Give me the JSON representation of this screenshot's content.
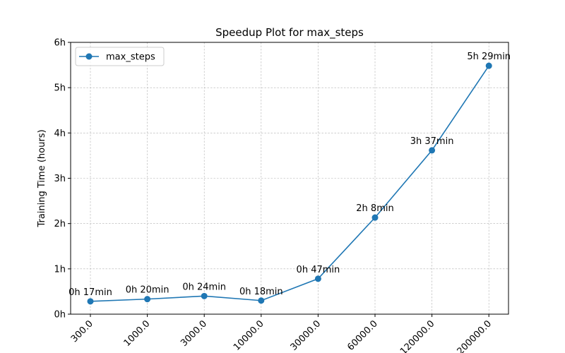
{
  "chart_data": {
    "type": "line",
    "title": "Speedup Plot for max_steps",
    "xlabel": "",
    "ylabel": "Training Time (hours)",
    "categories": [
      "300.0",
      "1000.0",
      "3000.0",
      "10000.0",
      "30000.0",
      "60000.0",
      "120000.0",
      "200000.0"
    ],
    "series": [
      {
        "name": "max_steps",
        "values": [
          0.283,
          0.333,
          0.4,
          0.3,
          0.783,
          2.133,
          3.617,
          5.483
        ],
        "labels": [
          "0h 17min",
          "0h 20min",
          "0h 24min",
          "0h 18min",
          "0h 47min",
          "2h 8min",
          "3h 37min",
          "5h 29min"
        ],
        "color": "#1f77b4",
        "marker": "circle"
      }
    ],
    "ylim": [
      0,
      6
    ],
    "yticks": [
      0,
      1,
      2,
      3,
      4,
      5,
      6
    ],
    "ytick_labels": [
      "0h",
      "1h",
      "2h",
      "3h",
      "4h",
      "5h",
      "6h"
    ],
    "grid": true,
    "legend_position": "top-left"
  }
}
